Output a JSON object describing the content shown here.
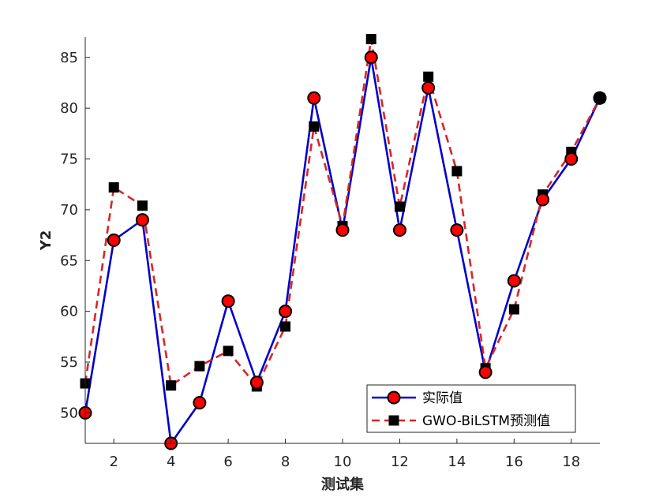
{
  "chart_data": {
    "type": "line",
    "xlabel": "测试集",
    "ylabel": "Y2",
    "xlim": [
      1,
      19
    ],
    "ylim": [
      47,
      87
    ],
    "xticks": [
      2,
      4,
      6,
      8,
      10,
      12,
      14,
      16,
      18
    ],
    "yticks": [
      50,
      55,
      60,
      65,
      70,
      75,
      80,
      85
    ],
    "x": [
      1,
      2,
      3,
      4,
      5,
      6,
      7,
      8,
      9,
      10,
      11,
      12,
      13,
      14,
      15,
      16,
      17,
      18,
      19
    ],
    "grid": false,
    "legend_position": "bottom-right",
    "series": [
      {
        "name": "实际值",
        "values": [
          50,
          67,
          69,
          47,
          51,
          61,
          53,
          60,
          81,
          68,
          85,
          68,
          82,
          68,
          54,
          63,
          71,
          75,
          81
        ],
        "color": "#0000cc",
        "marker_color": "#ff0000",
        "marker": "circle",
        "line_style": "solid"
      },
      {
        "name": "GWO-BiLSTM预测值",
        "values": [
          52.9,
          72.2,
          70.4,
          52.7,
          54.6,
          56.1,
          52.6,
          58.5,
          78.2,
          68.4,
          86.8,
          70.3,
          83.1,
          73.8,
          54.4,
          60.2,
          71.5,
          75.7,
          81.0
        ],
        "color": "#d62728",
        "marker_color": "#000000",
        "marker": "square",
        "line_style": "dashed"
      }
    ]
  }
}
